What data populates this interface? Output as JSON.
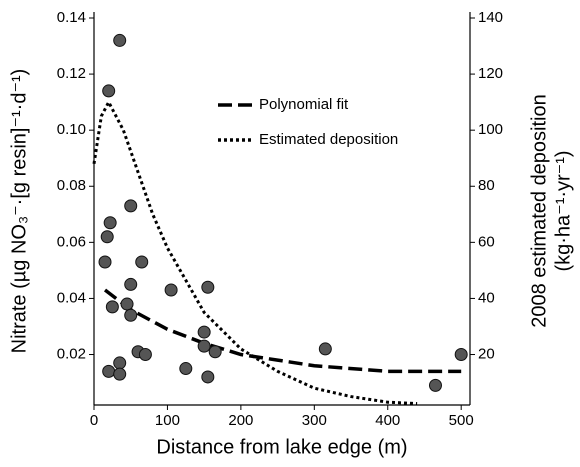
{
  "chart_data": {
    "type": "scatter",
    "x_label": "Distance from lake edge (m)",
    "y_label": "Nitrate (µg NO₃⁻·[g resin]⁻¹·d⁻¹)",
    "y2_label": [
      "2008 estimated deposition",
      "(kg·ha⁻¹·yr⁻¹)"
    ],
    "xlim": [
      0,
      512
    ],
    "xticks": [
      0,
      100,
      200,
      300,
      400,
      500
    ],
    "ylim": [
      0.002,
      0.14
    ],
    "yticks": [
      0.02,
      0.04,
      0.06,
      0.08,
      {
        "value": 0.1,
        "label": "0.10"
      },
      0.12,
      0.14
    ],
    "y2lim": [
      2,
      140
    ],
    "y2ticks": [
      20,
      40,
      60,
      80,
      100,
      120,
      140
    ],
    "points": {
      "color": "#555555",
      "x": [
        35,
        20,
        22,
        18,
        15,
        50,
        25,
        45,
        50,
        50,
        65,
        60,
        70,
        35,
        20,
        35,
        105,
        125,
        150,
        150,
        155,
        165,
        155,
        315,
        465,
        500
      ],
      "y": [
        0.132,
        0.114,
        0.067,
        0.062,
        0.053,
        0.073,
        0.037,
        0.038,
        0.045,
        0.034,
        0.053,
        0.021,
        0.02,
        0.017,
        0.014,
        0.013,
        0.043,
        0.015,
        0.028,
        0.023,
        0.044,
        0.021,
        0.012,
        0.022,
        0.009,
        0.02
      ]
    },
    "series": [
      {
        "name": "Polynomial fit",
        "color": "#000000",
        "style": "dashed",
        "x": [
          15,
          50,
          100,
          150,
          200,
          250,
          300,
          400,
          500
        ],
        "values": [
          0.043,
          0.036,
          0.029,
          0.024,
          0.02,
          0.018,
          0.016,
          0.014,
          0.014
        ]
      },
      {
        "name": "Estimated deposition",
        "color": "#000000",
        "style": "dotted",
        "axis": "y2",
        "x": [
          0,
          10,
          20,
          40,
          60,
          80,
          100,
          150,
          200,
          250,
          300,
          350,
          400,
          440
        ],
        "values": [
          88,
          105,
          110,
          100,
          85,
          70,
          58,
          35,
          22,
          14,
          8,
          5,
          3,
          2.5
        ]
      }
    ]
  }
}
